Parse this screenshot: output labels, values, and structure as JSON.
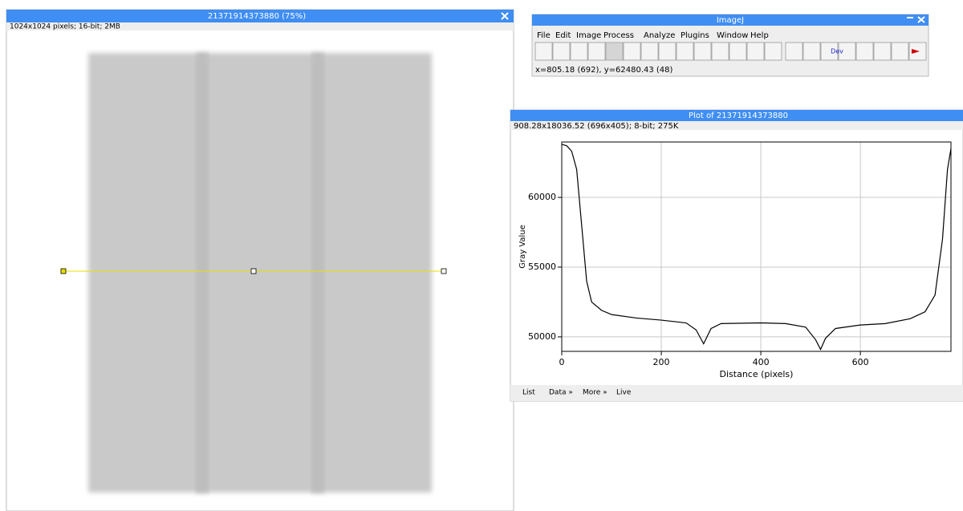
{
  "image_window": {
    "title": "21371914373880 (75%)",
    "info": "1024x1024 pixels; 16-bit; 2MB"
  },
  "toolbar_window": {
    "title": "ImageJ",
    "menu": [
      "File",
      "Edit",
      "Image",
      "Process",
      "Analyze",
      "Plugins",
      "Window",
      "Help"
    ],
    "tool_label": "Dev",
    "status": "x=805.18 (692), y=62480.43 (48)"
  },
  "plot_window": {
    "title": "Plot of 21371914373880",
    "info": "908.28x18036.52  (696x405); 8-bit; 275K",
    "buttons": [
      "List",
      "Data »",
      "More »",
      "Live"
    ]
  },
  "chart_data": {
    "type": "line",
    "x_label": "Distance (pixels)",
    "y_label": "Gray Value",
    "xlim": [
      0,
      782
    ],
    "ylim": [
      48960,
      63970
    ],
    "xticks": [
      0,
      200,
      400,
      600
    ],
    "yticks": [
      50000,
      55000,
      60000
    ],
    "grid": true,
    "series": [
      {
        "color": "#000000",
        "x": [
          0,
          10,
          20,
          30,
          40,
          50,
          60,
          80,
          100,
          150,
          200,
          250,
          270,
          285,
          300,
          320,
          400,
          450,
          490,
          510,
          520,
          530,
          550,
          600,
          650,
          700,
          730,
          750,
          765,
          775,
          782
        ],
        "values": [
          63800,
          63700,
          63300,
          62000,
          58000,
          54000,
          52500,
          51900,
          51600,
          51350,
          51200,
          51000,
          50500,
          49500,
          50600,
          50950,
          51000,
          50950,
          50700,
          49800,
          49100,
          49900,
          50600,
          50850,
          50950,
          51300,
          51800,
          53000,
          57000,
          62000,
          63500
        ]
      }
    ]
  }
}
